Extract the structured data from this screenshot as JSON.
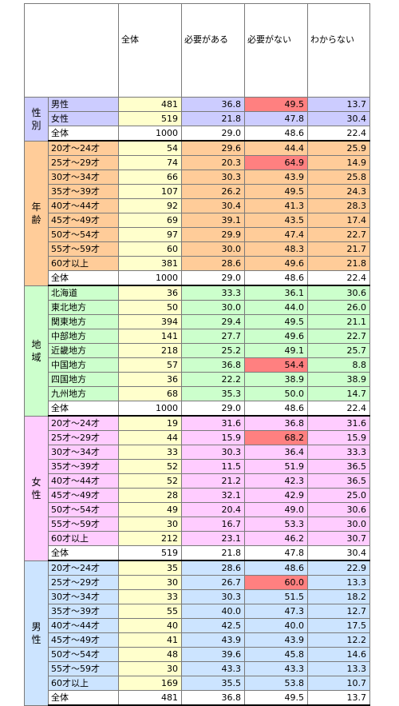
{
  "header": {
    "columns": [
      "全体",
      "必要がある",
      "必要がない",
      "わからない"
    ]
  },
  "colors": {
    "gender": "#ccccff",
    "age": "#ffcc99",
    "region": "#ccffcc",
    "female": "#ffccff",
    "male": "#cce4ff",
    "n_column": "#ffffcc",
    "highlight": "#ff8080",
    "total_row": "#ffffff"
  },
  "sections": [
    {
      "key": "gender",
      "label": "性\n別",
      "color": "#ccccff",
      "rows": [
        {
          "label": "男性",
          "values": [
            "481",
            "36.8",
            "49.5",
            "13.7"
          ],
          "hl": 2
        },
        {
          "label": "女性",
          "values": [
            "519",
            "21.8",
            "47.8",
            "30.4"
          ]
        }
      ],
      "total": {
        "label": "全体",
        "values": [
          "1000",
          "29.0",
          "48.6",
          "22.4"
        ]
      }
    },
    {
      "key": "age",
      "label": "年\n齢",
      "color": "#ffcc99",
      "rows": [
        {
          "label": "20才～24才",
          "values": [
            "54",
            "29.6",
            "44.4",
            "25.9"
          ]
        },
        {
          "label": "25才～29才",
          "values": [
            "74",
            "20.3",
            "64.9",
            "14.9"
          ],
          "hl": 2
        },
        {
          "label": "30才～34才",
          "values": [
            "66",
            "30.3",
            "43.9",
            "25.8"
          ]
        },
        {
          "label": "35才～39才",
          "values": [
            "107",
            "26.2",
            "49.5",
            "24.3"
          ]
        },
        {
          "label": "40才～44才",
          "values": [
            "92",
            "30.4",
            "41.3",
            "28.3"
          ]
        },
        {
          "label": "45才～49才",
          "values": [
            "69",
            "39.1",
            "43.5",
            "17.4"
          ]
        },
        {
          "label": "50才～54才",
          "values": [
            "97",
            "29.9",
            "47.4",
            "22.7"
          ]
        },
        {
          "label": "55才～59才",
          "values": [
            "60",
            "30.0",
            "48.3",
            "21.7"
          ]
        },
        {
          "label": "60才以上",
          "values": [
            "381",
            "28.6",
            "49.6",
            "21.8"
          ]
        }
      ],
      "total": {
        "label": "全体",
        "values": [
          "1000",
          "29.0",
          "48.6",
          "22.4"
        ]
      }
    },
    {
      "key": "region",
      "label": "地\n域",
      "color": "#ccffcc",
      "rows": [
        {
          "label": "北海道",
          "values": [
            "36",
            "33.3",
            "36.1",
            "30.6"
          ]
        },
        {
          "label": "東北地方",
          "values": [
            "50",
            "30.0",
            "44.0",
            "26.0"
          ]
        },
        {
          "label": "関東地方",
          "values": [
            "394",
            "29.4",
            "49.5",
            "21.1"
          ]
        },
        {
          "label": "中部地方",
          "values": [
            "141",
            "27.7",
            "49.6",
            "22.7"
          ]
        },
        {
          "label": "近畿地方",
          "values": [
            "218",
            "25.2",
            "49.1",
            "25.7"
          ]
        },
        {
          "label": "中国地方",
          "values": [
            "57",
            "36.8",
            "54.4",
            "8.8"
          ],
          "hl": 2
        },
        {
          "label": "四国地方",
          "values": [
            "36",
            "22.2",
            "38.9",
            "38.9"
          ]
        },
        {
          "label": "九州地方",
          "values": [
            "68",
            "35.3",
            "50.0",
            "14.7"
          ]
        }
      ],
      "total": {
        "label": "全体",
        "values": [
          "1000",
          "29.0",
          "48.6",
          "22.4"
        ]
      }
    },
    {
      "key": "female",
      "label": "女\n性",
      "color": "#ffccff",
      "rows": [
        {
          "label": "20才～24才",
          "values": [
            "19",
            "31.6",
            "36.8",
            "31.6"
          ]
        },
        {
          "label": "25才～29才",
          "values": [
            "44",
            "15.9",
            "68.2",
            "15.9"
          ],
          "hl": 2
        },
        {
          "label": "30才～34才",
          "values": [
            "33",
            "30.3",
            "36.4",
            "33.3"
          ]
        },
        {
          "label": "35才～39才",
          "values": [
            "52",
            "11.5",
            "51.9",
            "36.5"
          ]
        },
        {
          "label": "40才～44才",
          "values": [
            "52",
            "21.2",
            "42.3",
            "36.5"
          ]
        },
        {
          "label": "45才～49才",
          "values": [
            "28",
            "32.1",
            "42.9",
            "25.0"
          ]
        },
        {
          "label": "50才～54才",
          "values": [
            "49",
            "20.4",
            "49.0",
            "30.6"
          ]
        },
        {
          "label": "55才～59才",
          "values": [
            "30",
            "16.7",
            "53.3",
            "30.0"
          ]
        },
        {
          "label": "60才以上",
          "values": [
            "212",
            "23.1",
            "46.2",
            "30.7"
          ]
        }
      ],
      "total": {
        "label": "全体",
        "values": [
          "519",
          "21.8",
          "47.8",
          "30.4"
        ]
      }
    },
    {
      "key": "male",
      "label": "男\n性",
      "color": "#cce4ff",
      "rows": [
        {
          "label": "20才～24才",
          "values": [
            "35",
            "28.6",
            "48.6",
            "22.9"
          ]
        },
        {
          "label": "25才～29才",
          "values": [
            "30",
            "26.7",
            "60.0",
            "13.3"
          ],
          "hl": 2
        },
        {
          "label": "30才～34才",
          "values": [
            "33",
            "30.3",
            "51.5",
            "18.2"
          ]
        },
        {
          "label": "35才～39才",
          "values": [
            "55",
            "40.0",
            "47.3",
            "12.7"
          ]
        },
        {
          "label": "40才～44才",
          "values": [
            "40",
            "42.5",
            "40.0",
            "17.5"
          ]
        },
        {
          "label": "45才～49才",
          "values": [
            "41",
            "43.9",
            "43.9",
            "12.2"
          ]
        },
        {
          "label": "50才～54才",
          "values": [
            "48",
            "39.6",
            "45.8",
            "14.6"
          ]
        },
        {
          "label": "55才～59才",
          "values": [
            "30",
            "43.3",
            "43.3",
            "13.3"
          ]
        },
        {
          "label": "60才以上",
          "values": [
            "169",
            "35.5",
            "53.8",
            "10.7"
          ]
        }
      ],
      "total": {
        "label": "全体",
        "values": [
          "481",
          "36.8",
          "49.5",
          "13.7"
        ]
      }
    }
  ]
}
